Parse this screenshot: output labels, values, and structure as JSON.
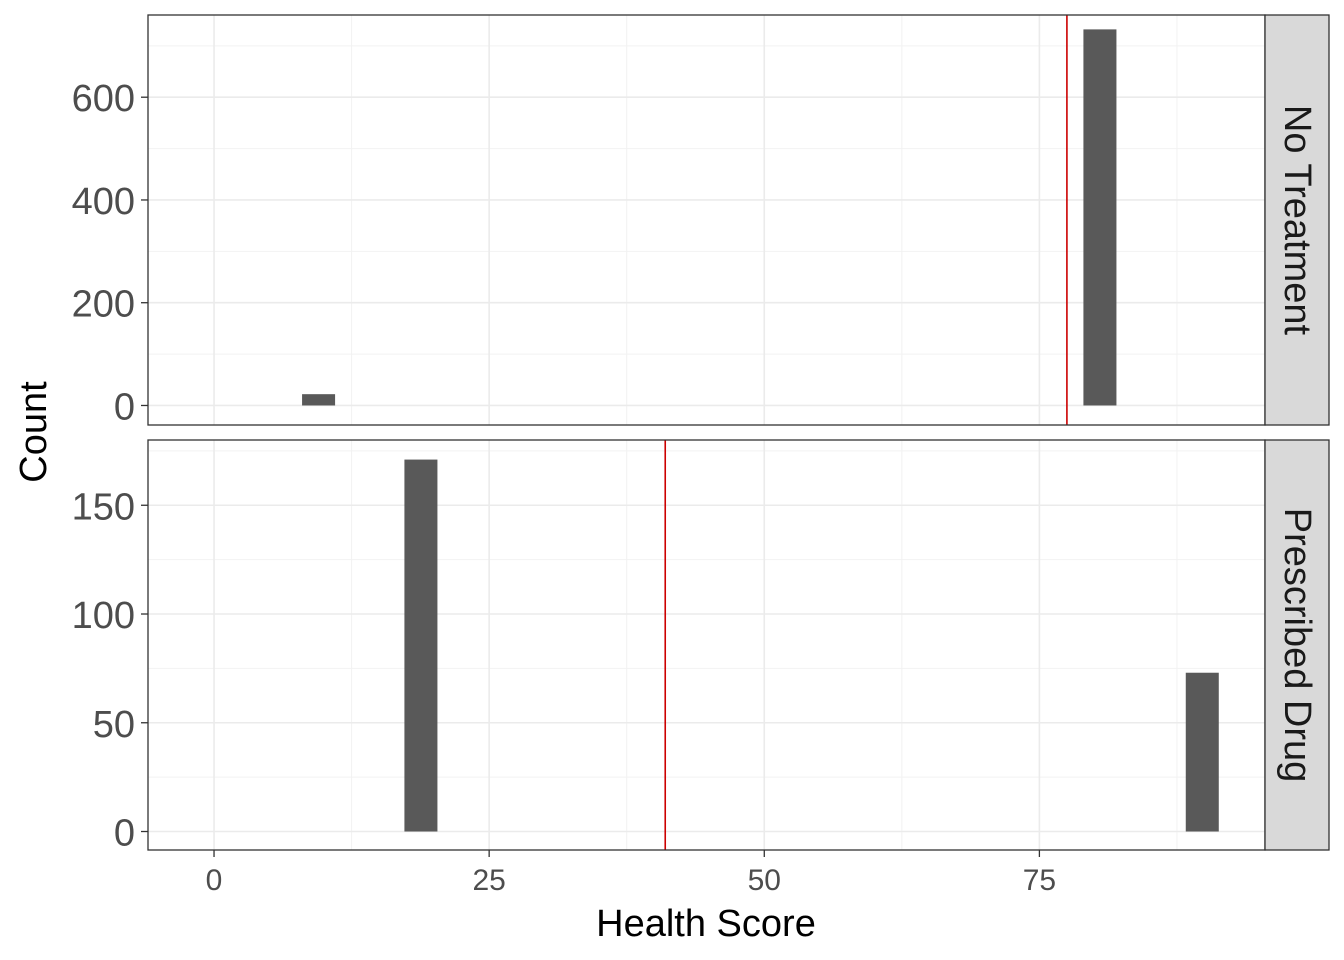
{
  "chart_data": {
    "type": "bar",
    "subtype": "faceted-histogram",
    "xlabel": "Health Score",
    "ylabel": "Count",
    "xlim": [
      -6,
      95.5
    ],
    "x_ticks": [
      0,
      25,
      50,
      75
    ],
    "x_tick_labels": [
      "0",
      "25",
      "50",
      "75"
    ],
    "bar_width": 3,
    "grid": true,
    "bar_color": "#595959",
    "vline_color": "#cc0000",
    "facets": [
      {
        "label": "No Treatment",
        "ylim": [
          -38,
          760
        ],
        "y_ticks": [
          0,
          200,
          400,
          600
        ],
        "y_tick_labels": [
          "0",
          "200",
          "400",
          "600"
        ],
        "bars": [
          {
            "x": 9.5,
            "value": 22
          },
          {
            "x": 80.5,
            "value": 732
          }
        ],
        "vline": 77.5
      },
      {
        "label": "Prescribed Drug",
        "ylim": [
          -8.5,
          180
        ],
        "y_ticks": [
          0,
          50,
          100,
          150
        ],
        "y_tick_labels": [
          "0",
          "50",
          "100",
          "150"
        ],
        "bars": [
          {
            "x": 18.8,
            "value": 171
          },
          {
            "x": 89.8,
            "value": 73
          }
        ],
        "vline": 41
      }
    ]
  }
}
